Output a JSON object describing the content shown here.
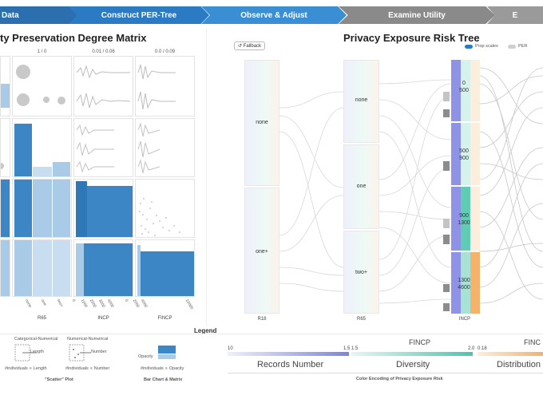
{
  "steps": [
    {
      "label": "Data",
      "color": "#2b6fae"
    },
    {
      "label": "Construct PER-Tree",
      "color": "#2b7bc4"
    },
    {
      "label": "Observe & Adjust",
      "color": "#3a8fd4"
    },
    {
      "label": "Examine Utility",
      "color": "#8a8a8a"
    },
    {
      "label": "E",
      "color": "#9a9a9a"
    }
  ],
  "matrix": {
    "title": "ty Preservation Degree Matrix",
    "col_headers": [
      "1 / 0",
      "0.01 / 0.06",
      "0.0 / 0.09"
    ],
    "axis_labels": [
      "R65",
      "INCP",
      "FINCP"
    ],
    "tick_labels_r65": [
      "none",
      "one",
      "two+"
    ],
    "tick_labels_incp": [
      "0",
      "1000",
      "2000",
      "3000",
      "4000"
    ],
    "tick_labels_fincp": [
      "0",
      "2000",
      "4000",
      "10000"
    ]
  },
  "tree": {
    "title": "Privacy Exposure Risk Tree",
    "fallback_label": "Fallback",
    "toggle1": "Prop scales",
    "toggle2": "PER",
    "columns": [
      {
        "label": "R18",
        "nodes": [
          "none",
          "one+"
        ]
      },
      {
        "label": "R65",
        "nodes": [
          "none",
          "one",
          "two+"
        ]
      },
      {
        "label": "INCP",
        "nodes": [
          "0\n500",
          "500\n900",
          "900\n1300",
          "1300\n4600"
        ]
      }
    ]
  },
  "legend": {
    "title": "Legend",
    "scatter_caption": "\"Scatter\" Plot",
    "bar_caption": "Bar Chart & Matrix",
    "cat_num": "Categorical-Numerical",
    "num_num": "Numerical-Numerical",
    "length_lbl": "Length",
    "number_lbl": "Number",
    "opacity_lbl": "Opacity",
    "value_length": "#individuals ∝ Length",
    "value_number": "#individuals ∝ Number",
    "value_opacity": "#individuals ∝ Opacity"
  },
  "color_scales": {
    "caption": "Color Encoding of Privacy Exposure Risk",
    "scales": [
      {
        "name": "Records Number",
        "min": "10",
        "max": "1.5",
        "from": "#eef0fb",
        "to": "#7b84e0"
      },
      {
        "name": "Diversity",
        "min": "1.5",
        "max": "2.0",
        "from": "#e6f7f3",
        "to": "#49c6ae",
        "head": "FINCP"
      },
      {
        "name": "Distribution",
        "min": "0.18",
        "max": "",
        "from": "#fbeedd",
        "to": "#f4b26b",
        "head": "FINC"
      }
    ]
  }
}
